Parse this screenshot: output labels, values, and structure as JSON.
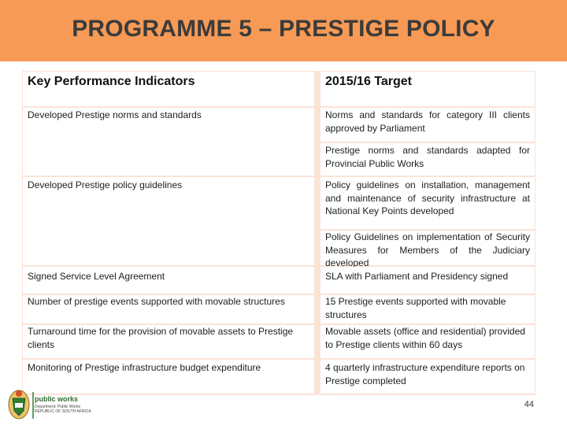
{
  "header": {
    "title": "PROGRAMME 5 – PRESTIGE POLICY"
  },
  "table": {
    "col_kpi": "Key Performance Indicators",
    "col_target": "2015/16 Target",
    "rows": [
      {
        "kpi": "Developed Prestige norms and standards",
        "target": "Norms and standards for category III clients approved by Parliament"
      },
      {
        "kpi": "",
        "target": "Prestige norms and standards adapted for Provincial Public Works"
      },
      {
        "kpi": "Developed Prestige policy guidelines",
        "target": "Policy guidelines on installation, management and maintenance of security infrastructure at National Key Points developed"
      },
      {
        "kpi": "",
        "target": "Policy Guidelines on implementation of Security Measures for Members of the Judiciary developed"
      },
      {
        "kpi": "Signed Service Level Agreement",
        "target": "SLA with Parliament and Presidency signed"
      },
      {
        "kpi": "Number of prestige events supported with movable structures",
        "target": "15 Prestige events supported with movable structures"
      },
      {
        "kpi": "Turnaround time for the provision of movable assets to Prestige clients",
        "target": "Movable assets (office and residential) provided to Prestige clients within 60 days"
      },
      {
        "kpi": "Monitoring of Prestige infrastructure budget expenditure",
        "target": "4 quarterly infrastructure expenditure reports on Prestige completed"
      }
    ]
  },
  "footer": {
    "logo_name": "public works",
    "logo_sub": "Department: Public Works REPUBLIC OF SOUTH AFRICA",
    "page_number": "44"
  },
  "colors": {
    "header_bg": "#f79a55",
    "table_border": "#fbe3d6"
  }
}
